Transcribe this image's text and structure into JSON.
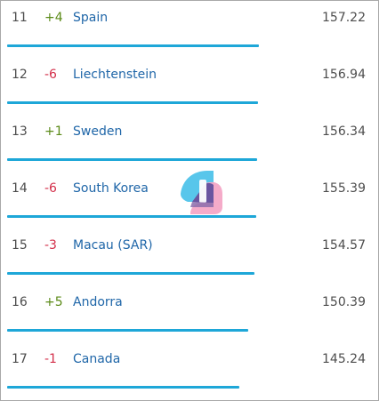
{
  "rows": [
    {
      "rank": "11",
      "change": "+4",
      "dir": "up",
      "country": "Spain",
      "score": "157.22",
      "bar": 0.9925
    },
    {
      "rank": "12",
      "change": "-6",
      "dir": "down",
      "country": "Liechtenstein",
      "score": "156.94",
      "bar": 0.9907
    },
    {
      "rank": "13",
      "change": "+1",
      "dir": "up",
      "country": "Sweden",
      "score": "156.34",
      "bar": 0.9869
    },
    {
      "rank": "14",
      "change": "-6",
      "dir": "down",
      "country": "South Korea",
      "score": "155.39",
      "bar": 0.9809
    },
    {
      "rank": "15",
      "change": "-3",
      "dir": "down",
      "country": "Macau (SAR)",
      "score": "154.57",
      "bar": 0.9758
    },
    {
      "rank": "16",
      "change": "+5",
      "dir": "up",
      "country": "Andorra",
      "score": "150.39",
      "bar": 0.9494
    },
    {
      "rank": "17",
      "change": "-1",
      "dir": "down",
      "country": "Canada",
      "score": "145.24",
      "bar": 0.9169
    }
  ],
  "colors": {
    "bar": "#1ea7d8",
    "up": "#5b8a17",
    "down": "#d32f4a",
    "link": "#1f66a8"
  },
  "logo_icon": "ranking-logo-icon"
}
